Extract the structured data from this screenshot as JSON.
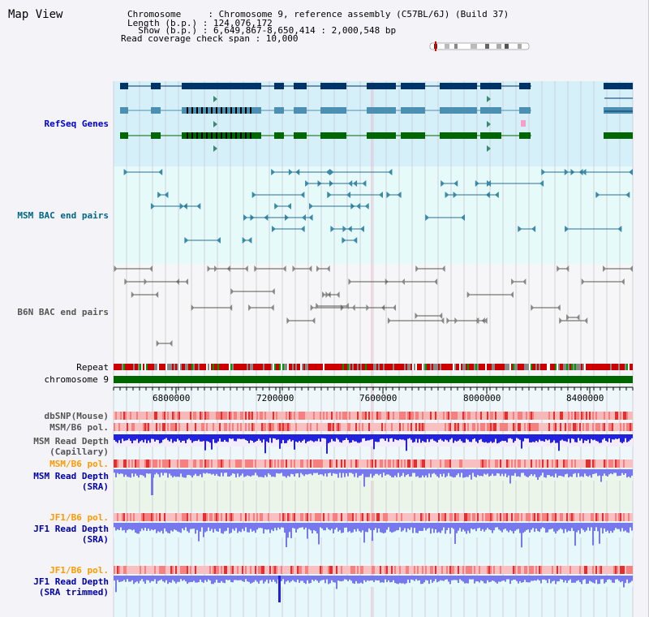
{
  "header": {
    "title": "Map View",
    "info_lines": [
      "Chromosome     : Chromosome 9, reference assembly (C57BL/6J) (Build 37)",
      "Length (b.p.) : 124,076,172",
      "  Show (b.p.) : 6,649,867-8,650,414 : 2,000,548 bp",
      "Read coverage check span : 10,000"
    ]
  },
  "tracks": {
    "refseq": {
      "label": "RefSeq Genes",
      "color": "#0000cc"
    },
    "msm_bac": {
      "label": "MSM BAC end pairs",
      "color": "#006688"
    },
    "b6n_bac": {
      "label": "B6N BAC end pairs",
      "color": "#555555"
    },
    "repeat": {
      "label": "Repeat"
    },
    "chromosome": {
      "label": "chromosome 9"
    },
    "dbsnp": {
      "label": "dbSNP(Mouse)"
    },
    "msm_b6_pol_1": {
      "label": "MSM/B6 pol."
    },
    "msm_depth_cap": {
      "label_1": "MSM Read Depth",
      "label_2": "(Capillary)"
    },
    "msm_b6_pol_2": {
      "label": "MSM/B6 pol.",
      "color": "#ff9900"
    },
    "msm_depth_sra": {
      "label_1": "MSM Read Depth",
      "label_2": "(SRA)"
    },
    "jf1_b6_pol_1": {
      "label": "JF1/B6 pol.",
      "color": "#ff9900"
    },
    "jf1_depth_sra": {
      "label_1": "JF1 Read Depth",
      "label_2": "(SRA)"
    },
    "jf1_b6_pol_2": {
      "label": "JF1/B6 pol.",
      "color": "#ff9900"
    },
    "jf1_depth_trim": {
      "label_1": "JF1 Read Depth",
      "label_2": "(SRA trimmed)"
    }
  },
  "axis": {
    "ticks": [
      "6800000",
      "7200000",
      "7600000",
      "8000000",
      "8400000"
    ]
  },
  "colors": {
    "refseq_row1": "#003366",
    "refseq_row2": "#4b8fb3",
    "refseq_row3": "#006600",
    "chromosome_bar": "#006600",
    "depth_blue": "#2222dd",
    "depth_light": "#7777ee"
  }
}
